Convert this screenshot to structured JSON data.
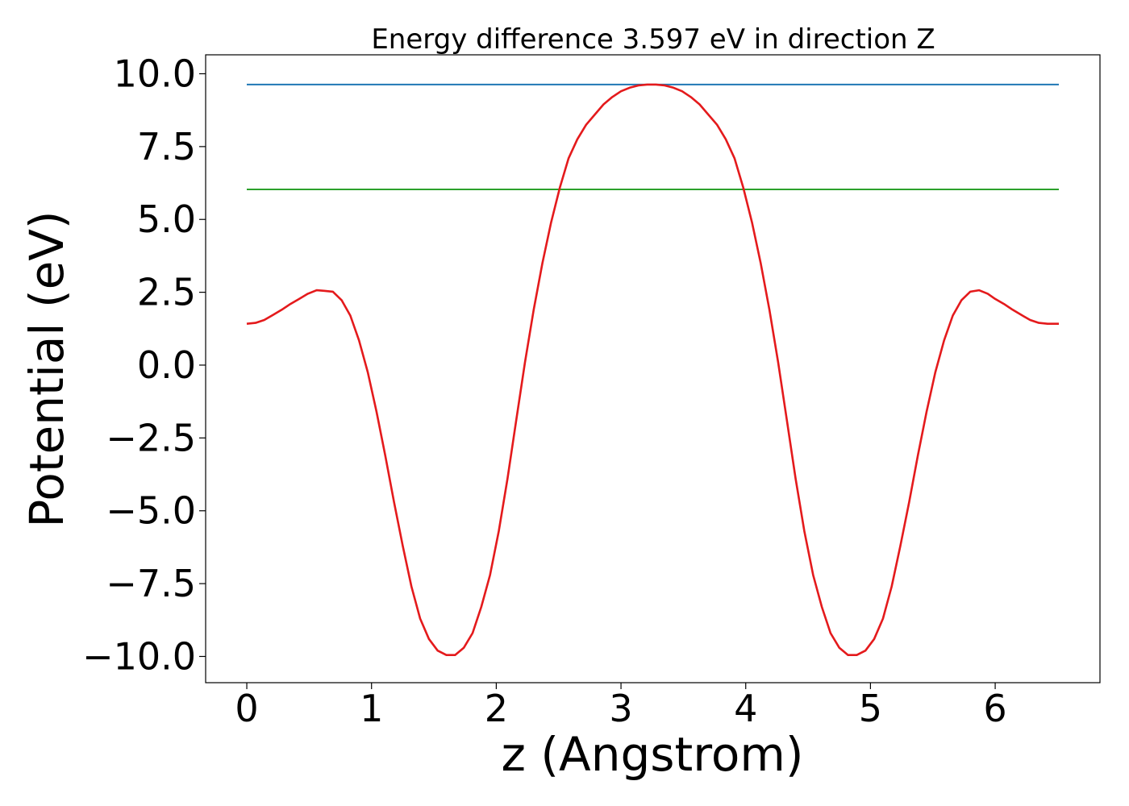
{
  "chart_data": {
    "type": "line",
    "title": "Energy difference 3.597 eV in direction Z",
    "xlabel": "z (Angstrom)",
    "ylabel": "Potential (eV)",
    "xlim": [
      -0.33,
      6.84
    ],
    "ylim": [
      -10.9,
      10.65
    ],
    "grid": false,
    "legend": "none",
    "xticks": [
      0,
      1,
      2,
      3,
      4,
      5,
      6
    ],
    "xtick_labels": [
      "0",
      "1",
      "2",
      "3",
      "4",
      "5",
      "6"
    ],
    "yticks": [
      10.0,
      7.5,
      5.0,
      2.5,
      0.0,
      -2.5,
      -5.0,
      -7.5,
      -10.0
    ],
    "ytick_labels": [
      "10.0",
      "7.5",
      "5.0",
      "2.5",
      "0.0",
      "−2.5",
      "−5.0",
      "−7.5",
      "−10.0"
    ],
    "series": [
      {
        "color": "#1f77b4",
        "x": [
          0.0,
          6.51
        ],
        "y": [
          9.63,
          9.63
        ]
      },
      {
        "color": "#2ca02c",
        "x": [
          0.0,
          6.51
        ],
        "y": [
          6.03,
          6.03
        ]
      },
      {
        "color": "#e41a1c",
        "x": [
          0.0,
          0.07,
          0.14,
          0.21,
          0.28,
          0.35,
          0.42,
          0.49,
          0.56,
          0.62,
          0.69,
          0.76,
          0.83,
          0.9,
          0.97,
          1.04,
          1.11,
          1.18,
          1.25,
          1.32,
          1.39,
          1.46,
          1.53,
          1.6,
          1.67,
          1.74,
          1.81,
          1.88,
          1.95,
          2.02,
          2.09,
          2.16,
          2.23,
          2.3,
          2.37,
          2.44,
          2.51,
          2.58,
          2.65,
          2.72,
          2.79,
          2.86,
          2.93,
          3.0,
          3.07,
          3.14,
          3.21,
          3.28,
          3.35,
          3.42,
          3.49,
          3.56,
          3.63,
          3.7,
          3.77,
          3.84,
          3.91,
          3.98,
          4.05,
          4.12,
          4.19,
          4.26,
          4.33,
          4.4,
          4.47,
          4.54,
          4.61,
          4.68,
          4.75,
          4.82,
          4.89,
          4.96,
          5.03,
          5.1,
          5.17,
          5.24,
          5.31,
          5.38,
          5.45,
          5.52,
          5.59,
          5.66,
          5.73,
          5.8,
          5.87,
          5.94,
          6.0,
          6.07,
          6.14,
          6.21,
          6.28,
          6.35,
          6.42,
          6.51
        ],
        "y": [
          1.42,
          1.45,
          1.55,
          1.72,
          1.9,
          2.1,
          2.27,
          2.45,
          2.57,
          2.55,
          2.52,
          2.23,
          1.7,
          0.85,
          -0.25,
          -1.6,
          -3.1,
          -4.7,
          -6.2,
          -7.6,
          -8.7,
          -9.4,
          -9.8,
          -9.95,
          -9.95,
          -9.7,
          -9.2,
          -8.3,
          -7.2,
          -5.7,
          -3.9,
          -1.9,
          0.1,
          1.9,
          3.5,
          4.9,
          6.1,
          7.1,
          7.75,
          8.25,
          8.6,
          8.95,
          9.2,
          9.4,
          9.52,
          9.6,
          9.63,
          9.63,
          9.6,
          9.52,
          9.4,
          9.2,
          8.95,
          8.6,
          8.25,
          7.75,
          7.1,
          6.1,
          4.9,
          3.5,
          1.9,
          0.1,
          -1.9,
          -3.9,
          -5.7,
          -7.2,
          -8.3,
          -9.2,
          -9.7,
          -9.95,
          -9.95,
          -9.8,
          -9.4,
          -8.7,
          -7.6,
          -6.2,
          -4.7,
          -3.1,
          -1.6,
          -0.25,
          0.85,
          1.7,
          2.23,
          2.52,
          2.57,
          2.45,
          2.27,
          2.1,
          1.9,
          1.72,
          1.55,
          1.45,
          1.42,
          1.42
        ]
      }
    ]
  }
}
